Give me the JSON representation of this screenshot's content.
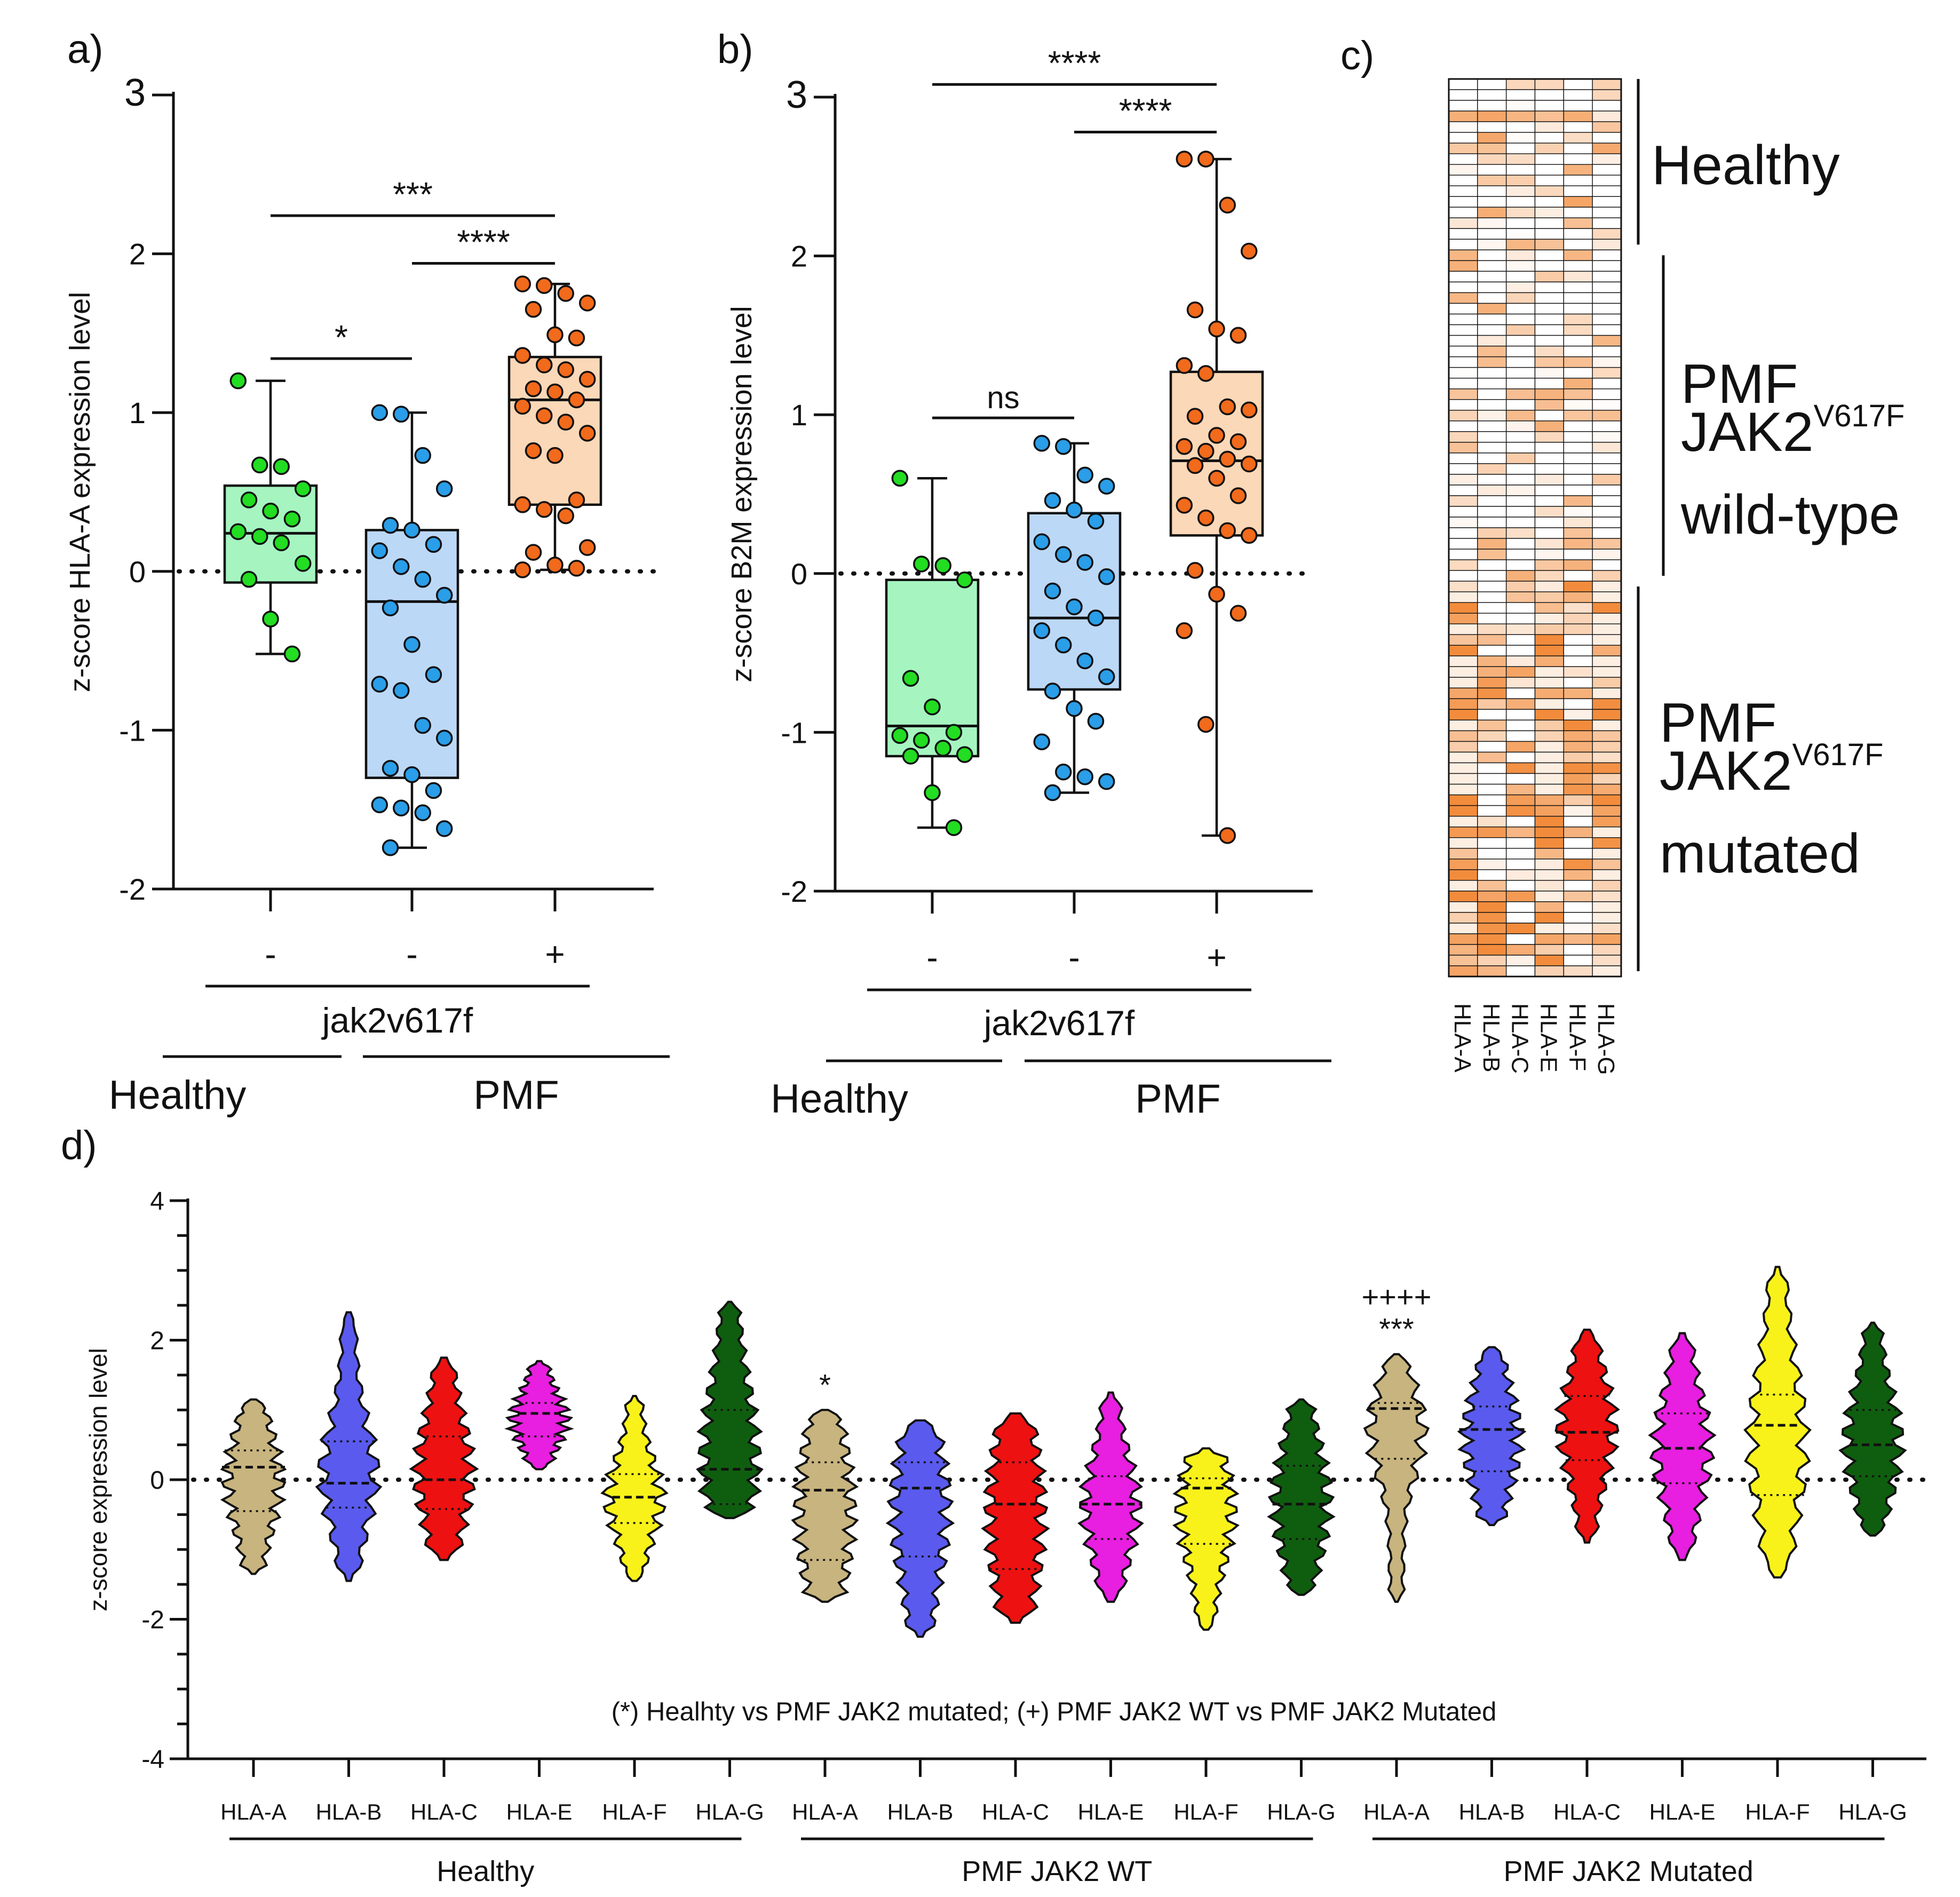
{
  "panel_labels": {
    "a": "a)",
    "b": "b)",
    "c": "c)",
    "d": "d)"
  },
  "chart_data": [
    {
      "id": "a",
      "type": "box",
      "ylabel": "z-score HLA-A expression level",
      "ylim": [
        -2,
        3
      ],
      "yticks": [
        "-2",
        "-1",
        "0",
        "1",
        "2",
        "3"
      ],
      "categories": [
        "-",
        "-",
        "+"
      ],
      "genotype_label": "jak2v617f",
      "groups": [
        "Healthy",
        "PMF"
      ],
      "colors": [
        "#a6f5c0",
        "#bcd8f7",
        "#fbd8b8"
      ],
      "dot_colors": [
        "#22dd22",
        "#2a9ee8",
        "#f26a1b"
      ],
      "boxes": [
        {
          "min": -0.52,
          "q1": -0.07,
          "median": 0.24,
          "q3": 0.54,
          "max": 1.2,
          "points": [
            1.2,
            0.67,
            0.66,
            0.52,
            0.45,
            0.38,
            0.33,
            0.25,
            0.22,
            0.18,
            0.05,
            -0.05,
            -0.3,
            -0.52
          ]
        },
        {
          "min": -1.74,
          "q1": -1.3,
          "median": -0.19,
          "q3": 0.26,
          "max": 1.0,
          "points": [
            1.0,
            0.99,
            0.73,
            0.52,
            0.29,
            0.26,
            0.17,
            0.13,
            0.03,
            -0.05,
            -0.15,
            -0.23,
            -0.46,
            -0.65,
            -0.71,
            -0.75,
            -0.97,
            -1.05,
            -1.24,
            -1.28,
            -1.38,
            -1.47,
            -1.49,
            -1.52,
            -1.62,
            -1.74
          ]
        },
        {
          "min": 0.01,
          "q1": 0.42,
          "median": 1.08,
          "q3": 1.35,
          "max": 1.81,
          "points": [
            1.81,
            1.8,
            1.75,
            1.69,
            1.65,
            1.49,
            1.47,
            1.36,
            1.3,
            1.27,
            1.21,
            1.15,
            1.13,
            1.08,
            1.04,
            0.98,
            0.94,
            0.87,
            0.76,
            0.73,
            0.45,
            0.42,
            0.39,
            0.35,
            0.15,
            0.12,
            0.04,
            0.02,
            0.01
          ]
        }
      ],
      "brackets": [
        {
          "from": 0,
          "to": 1,
          "label": "*",
          "y": 1.34
        },
        {
          "from": 1,
          "to": 2,
          "label": "****",
          "y": 1.94
        },
        {
          "from": 0,
          "to": 2,
          "label": "***",
          "y": 2.24
        }
      ]
    },
    {
      "id": "b",
      "type": "box",
      "ylabel": "z-score B2M expression level",
      "ylim": [
        -2,
        3
      ],
      "yticks": [
        "-2",
        "-1",
        "0",
        "1",
        "2",
        "3"
      ],
      "categories": [
        "-",
        "-",
        "+"
      ],
      "genotype_label": "jak2v617f",
      "groups": [
        "Healthy",
        "PMF"
      ],
      "colors": [
        "#a6f5c0",
        "#bcd8f7",
        "#fbd8b8"
      ],
      "dot_colors": [
        "#22dd22",
        "#2a9ee8",
        "#f26a1b"
      ],
      "boxes": [
        {
          "min": -1.6,
          "q1": -1.15,
          "median": -0.96,
          "q3": -0.04,
          "max": 0.6,
          "points": [
            0.6,
            0.06,
            0.05,
            -0.04,
            -0.66,
            -0.84,
            -1.0,
            -1.02,
            -1.05,
            -1.1,
            -1.14,
            -1.15,
            -1.38,
            -1.6
          ]
        },
        {
          "min": -1.38,
          "q1": -0.73,
          "median": -0.28,
          "q3": 0.38,
          "max": 0.82,
          "points": [
            0.82,
            0.8,
            0.62,
            0.55,
            0.46,
            0.4,
            0.33,
            0.2,
            0.12,
            0.07,
            -0.02,
            -0.11,
            -0.21,
            -0.28,
            -0.36,
            -0.45,
            -0.55,
            -0.65,
            -0.74,
            -0.85,
            -0.93,
            -1.06,
            -1.25,
            -1.28,
            -1.31,
            -1.38
          ]
        },
        {
          "min": -1.65,
          "q1": 0.24,
          "median": 0.71,
          "q3": 1.27,
          "max": 2.61,
          "points": [
            2.61,
            2.61,
            2.32,
            2.03,
            1.66,
            1.54,
            1.5,
            1.31,
            1.26,
            1.05,
            1.03,
            0.99,
            0.87,
            0.83,
            0.8,
            0.77,
            0.72,
            0.69,
            0.68,
            0.6,
            0.49,
            0.43,
            0.35,
            0.27,
            0.24,
            0.02,
            -0.13,
            -0.25,
            -0.36,
            -0.95,
            -1.65
          ]
        }
      ],
      "brackets": [
        {
          "from": 0,
          "to": 1,
          "label": "ns",
          "y": 0.98
        },
        {
          "from": 1,
          "to": 2,
          "label": "****",
          "y": 2.78
        },
        {
          "from": 0,
          "to": 2,
          "label": "****",
          "y": 3.08
        }
      ]
    },
    {
      "id": "c",
      "type": "heatmap",
      "columns": [
        "HLA-A",
        "HLA-B",
        "HLA-C",
        "HLA-E",
        "HLA-F",
        "HLA-G"
      ],
      "row_groups": [
        {
          "label_lines": [
            "Healthy"
          ],
          "rows": 16
        },
        {
          "label_lines": [
            "PMF",
            "JAK2",
            "wild-type"
          ],
          "rows": 31
        },
        {
          "label_lines": [
            "PMF",
            "JAK2",
            "mutated"
          ],
          "rows": 37
        }
      ],
      "superscript": "V617F",
      "color_low": "#ffffff",
      "color_high": "#f28c3c"
    },
    {
      "id": "d",
      "type": "violin",
      "ylabel": "z-score expression level",
      "ylim": [
        -4,
        4
      ],
      "yticks": [
        "-4",
        "-2",
        "0",
        "2",
        "4"
      ],
      "categories": [
        "HLA-A",
        "HLA-B",
        "HLA-C",
        "HLA-E",
        "HLA-F",
        "HLA-G",
        "HLA-A",
        "HLA-B",
        "HLA-C",
        "HLA-E",
        "HLA-F",
        "HLA-G",
        "HLA-A",
        "HLA-B",
        "HLA-C",
        "HLA-E",
        "HLA-F",
        "HLA-G"
      ],
      "groups": [
        "Healthy",
        "PMF JAK2 WT",
        "PMF JAK2 Mutated"
      ],
      "colors": {
        "HLA-A": "#c8b47e",
        "HLA-B": "#5a5aee",
        "HLA-C": "#ee1111",
        "HLA-E": "#e81ee0",
        "HLA-F": "#f8f21a",
        "HLA-G": "#0f5e0f"
      },
      "series": [
        {
          "min": -1.35,
          "max": 1.15,
          "median": 0.18,
          "q1": -0.45,
          "q3": 0.42
        },
        {
          "min": -1.45,
          "max": 2.4,
          "median": -0.05,
          "q1": -0.4,
          "q3": 0.55
        },
        {
          "min": -1.15,
          "max": 1.75,
          "median": 0.0,
          "q1": -0.42,
          "q3": 0.62
        },
        {
          "min": 0.15,
          "max": 1.7,
          "median": 0.95,
          "q1": 0.62,
          "q3": 1.1
        },
        {
          "min": -1.45,
          "max": 1.2,
          "median": -0.25,
          "q1": -0.62,
          "q3": 0.08
        },
        {
          "min": -0.55,
          "max": 2.55,
          "median": 0.15,
          "q1": -0.35,
          "q3": 1.0
        },
        {
          "min": -1.75,
          "max": 1.0,
          "median": -0.15,
          "q1": -1.15,
          "q3": 0.25
        },
        {
          "min": -2.25,
          "max": 0.85,
          "median": -0.12,
          "q1": -1.1,
          "q3": 0.25
        },
        {
          "min": -2.05,
          "max": 0.95,
          "median": -0.35,
          "q1": -1.28,
          "q3": 0.25
        },
        {
          "min": -1.75,
          "max": 1.25,
          "median": -0.35,
          "q1": -0.85,
          "q3": 0.05
        },
        {
          "min": -2.15,
          "max": 0.45,
          "median": -0.12,
          "q1": -0.92,
          "q3": 0.02
        },
        {
          "min": -1.65,
          "max": 1.15,
          "median": -0.35,
          "q1": -0.85,
          "q3": 0.2
        },
        {
          "min": -1.75,
          "max": 1.8,
          "median": 1.02,
          "q1": 0.3,
          "q3": 1.1
        },
        {
          "min": -0.65,
          "max": 1.9,
          "median": 0.72,
          "q1": 0.12,
          "q3": 1.05
        },
        {
          "min": -0.9,
          "max": 2.15,
          "median": 0.68,
          "q1": 0.28,
          "q3": 1.2
        },
        {
          "min": -1.15,
          "max": 2.1,
          "median": 0.45,
          "q1": -0.05,
          "q3": 0.95
        },
        {
          "min": -1.4,
          "max": 3.05,
          "median": 0.78,
          "q1": -0.22,
          "q3": 1.22
        },
        {
          "min": -0.8,
          "max": 2.25,
          "median": 0.5,
          "q1": 0.05,
          "q3": 1.0
        }
      ],
      "annotations": [
        {
          "index": 6,
          "lines": [
            "*"
          ]
        },
        {
          "index": 12,
          "lines": [
            "++++",
            "***"
          ]
        }
      ],
      "footnote": "(*) Healhty vs PMF JAK2 mutated; (+) PMF JAK2 WT vs PMF JAK2 Mutated"
    }
  ]
}
